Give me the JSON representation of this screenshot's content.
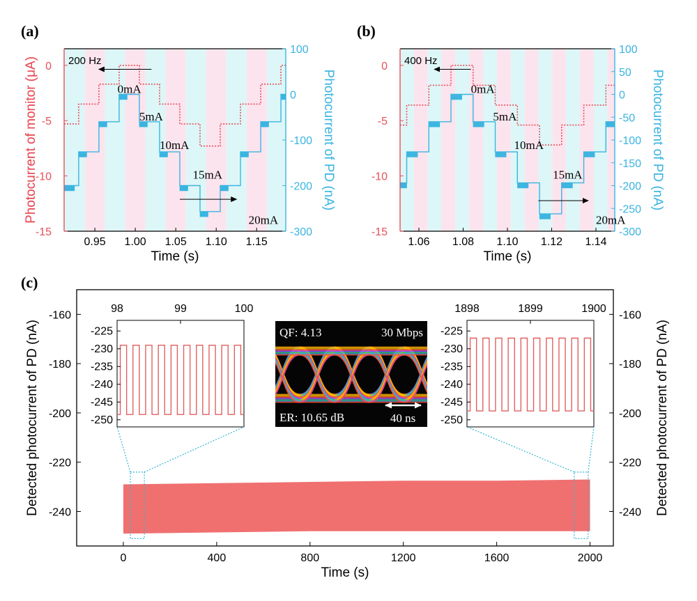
{
  "colors": {
    "monitor": "#e8505a",
    "pd": "#3ab4e0",
    "pinkband": "#fbe4ee",
    "cyanband": "#ddf6f7",
    "mainfill": "#f07070",
    "insetline": "#e06060",
    "zoombox": "#33b5d5"
  },
  "chart_data": [
    {
      "id": "a",
      "panel_label": "(a)",
      "type": "line",
      "xlabel": "Time (s)",
      "ylabel_left": "Photocurrent of monitor (μA)",
      "ylabel_right": "Photocurrent of PD (nA)",
      "xlim": [
        0.912,
        1.186
      ],
      "ylim_left": [
        -15,
        1.5
      ],
      "ylim_right": [
        -300,
        100
      ],
      "xticks": [
        "0.95",
        "1.00",
        "1.05",
        "1.10",
        "1.15"
      ],
      "xtick_values": [
        0.95,
        1.0,
        1.05,
        1.1,
        1.15
      ],
      "yticks_left": [
        "0",
        "-5",
        "-10",
        "-15"
      ],
      "ytick_left_values": [
        0,
        -5,
        -10,
        -15
      ],
      "yticks_right": [
        "100",
        "0",
        "-100",
        "-200",
        "-300"
      ],
      "ytick_right_values": [
        100,
        0,
        -100,
        -200,
        -300
      ],
      "frequency_label": "200 Hz",
      "band_period": 0.025,
      "band_start": 0.9125,
      "monitor_series": {
        "name": "Photocurrent of monitor",
        "steps": [
          {
            "x0": 0.912,
            "x1": 0.93,
            "y": -5.3
          },
          {
            "x0": 0.93,
            "x1": 0.955,
            "y": -3.5
          },
          {
            "x0": 0.955,
            "x1": 0.98,
            "y": -1.7
          },
          {
            "x0": 0.98,
            "x1": 1.005,
            "y": 0
          },
          {
            "x0": 1.005,
            "x1": 1.03,
            "y": -1.7
          },
          {
            "x0": 1.03,
            "x1": 1.055,
            "y": -3.5
          },
          {
            "x0": 1.055,
            "x1": 1.08,
            "y": -5.3
          },
          {
            "x0": 1.08,
            "x1": 1.105,
            "y": -7.3
          },
          {
            "x0": 1.105,
            "x1": 1.13,
            "y": -5.3
          },
          {
            "x0": 1.13,
            "x1": 1.155,
            "y": -3.5
          },
          {
            "x0": 1.155,
            "x1": 1.18,
            "y": -1.7
          },
          {
            "x0": 1.18,
            "x1": 1.186,
            "y": 0
          }
        ]
      },
      "pd_series": {
        "name": "Photocurrent of PD",
        "steps": [
          {
            "x0": 0.912,
            "x1": 0.925,
            "y": -200,
            "ripple": true
          },
          {
            "x0": 0.925,
            "x1": 0.93,
            "y": -200,
            "ripple": false
          },
          {
            "x0": 0.93,
            "x1": 0.94,
            "y": -126,
            "ripple": true
          },
          {
            "x0": 0.94,
            "x1": 0.955,
            "y": -126,
            "ripple": false
          },
          {
            "x0": 0.955,
            "x1": 0.965,
            "y": -60,
            "ripple": true
          },
          {
            "x0": 0.965,
            "x1": 0.98,
            "y": -60,
            "ripple": false
          },
          {
            "x0": 0.98,
            "x1": 0.99,
            "y": 0,
            "ripple": true
          },
          {
            "x0": 0.99,
            "x1": 1.005,
            "y": 0,
            "ripple": false
          },
          {
            "x0": 1.005,
            "x1": 1.015,
            "y": -60,
            "ripple": true
          },
          {
            "x0": 1.015,
            "x1": 1.03,
            "y": -60,
            "ripple": false
          },
          {
            "x0": 1.03,
            "x1": 1.04,
            "y": -126,
            "ripple": true
          },
          {
            "x0": 1.04,
            "x1": 1.055,
            "y": -126,
            "ripple": false
          },
          {
            "x0": 1.055,
            "x1": 1.065,
            "y": -200,
            "ripple": true
          },
          {
            "x0": 1.065,
            "x1": 1.08,
            "y": -200,
            "ripple": false
          },
          {
            "x0": 1.08,
            "x1": 1.09,
            "y": -257,
            "ripple": true
          },
          {
            "x0": 1.09,
            "x1": 1.105,
            "y": -257,
            "ripple": false
          },
          {
            "x0": 1.105,
            "x1": 1.115,
            "y": -200,
            "ripple": true
          },
          {
            "x0": 1.115,
            "x1": 1.13,
            "y": -200,
            "ripple": false
          },
          {
            "x0": 1.13,
            "x1": 1.14,
            "y": -126,
            "ripple": true
          },
          {
            "x0": 1.14,
            "x1": 1.155,
            "y": -126,
            "ripple": false
          },
          {
            "x0": 1.155,
            "x1": 1.165,
            "y": -60,
            "ripple": true
          },
          {
            "x0": 1.165,
            "x1": 1.18,
            "y": -60,
            "ripple": false
          },
          {
            "x0": 1.18,
            "x1": 1.186,
            "y": 0,
            "ripple": true
          }
        ]
      },
      "annotations": [
        {
          "text": "0mA",
          "x": 0.978,
          "y": 3
        },
        {
          "text": "5mA",
          "x": 1.005,
          "y": -57
        },
        {
          "text": "10mA",
          "x": 1.03,
          "y": -120
        },
        {
          "text": "15mA",
          "x": 1.071,
          "y": -185
        },
        {
          "text": "20mA",
          "x": 1.14,
          "y": -284
        }
      ],
      "arrows": [
        {
          "x0": 1.02,
          "x1": 0.955,
          "y": 55
        },
        {
          "x0": 1.055,
          "x1": 1.125,
          "y": -230
        }
      ]
    },
    {
      "id": "b",
      "panel_label": "(b)",
      "type": "line",
      "xlabel": "Time (s)",
      "ylabel_left": "Photocurrent of monitor (μA)",
      "ylabel_right": "Photocurrent of PD (nA)",
      "xlim": [
        1.0515,
        1.1485
      ],
      "ylim_left": [
        -15,
        1.5
      ],
      "ylim_right": [
        -300,
        100
      ],
      "xticks": [
        "1.06",
        "1.08",
        "1.10",
        "1.12",
        "1.14"
      ],
      "xtick_values": [
        1.06,
        1.08,
        1.1,
        1.12,
        1.14
      ],
      "yticks_left": [
        "0",
        "-5",
        "-10",
        "-15"
      ],
      "ytick_left_values": [
        0,
        -5,
        -10,
        -15
      ],
      "yticks_right": [
        "100",
        "50",
        "0",
        "-50",
        "-100",
        "-150",
        "-200",
        "-250",
        "-300"
      ],
      "ytick_right_values": [
        100,
        50,
        0,
        -50,
        -100,
        -150,
        -200,
        -250,
        -300
      ],
      "frequency_label": "400 Hz",
      "band_period": 0.00625,
      "band_start": 1.0515,
      "monitor_series": {
        "name": "Photocurrent of monitor",
        "steps": [
          {
            "x0": 1.0515,
            "x1": 1.0545,
            "y": -5.4
          },
          {
            "x0": 1.0545,
            "x1": 1.0645,
            "y": -3.6
          },
          {
            "x0": 1.0645,
            "x1": 1.0745,
            "y": -1.8
          },
          {
            "x0": 1.0745,
            "x1": 1.0845,
            "y": 0
          },
          {
            "x0": 1.0845,
            "x1": 1.0945,
            "y": -1.8
          },
          {
            "x0": 1.0945,
            "x1": 1.1045,
            "y": -3.6
          },
          {
            "x0": 1.1045,
            "x1": 1.1145,
            "y": -5.4
          },
          {
            "x0": 1.1145,
            "x1": 1.1245,
            "y": -7.2
          },
          {
            "x0": 1.1245,
            "x1": 1.1345,
            "y": -5.4
          },
          {
            "x0": 1.1345,
            "x1": 1.1445,
            "y": -3.6
          },
          {
            "x0": 1.1445,
            "x1": 1.1485,
            "y": -1.8
          }
        ]
      },
      "pd_series": {
        "name": "Photocurrent of PD",
        "steps": [
          {
            "x0": 1.0515,
            "x1": 1.0545,
            "y": -194,
            "ripple": true
          },
          {
            "x0": 1.0545,
            "x1": 1.0595,
            "y": -126,
            "ripple": true
          },
          {
            "x0": 1.0595,
            "x1": 1.0645,
            "y": -126,
            "ripple": false
          },
          {
            "x0": 1.0645,
            "x1": 1.0695,
            "y": -60,
            "ripple": true
          },
          {
            "x0": 1.0695,
            "x1": 1.0745,
            "y": -60,
            "ripple": false
          },
          {
            "x0": 1.0745,
            "x1": 1.0795,
            "y": 0,
            "ripple": true
          },
          {
            "x0": 1.0795,
            "x1": 1.0845,
            "y": 0,
            "ripple": false
          },
          {
            "x0": 1.0845,
            "x1": 1.0895,
            "y": -60,
            "ripple": true
          },
          {
            "x0": 1.0895,
            "x1": 1.0945,
            "y": -60,
            "ripple": false
          },
          {
            "x0": 1.0945,
            "x1": 1.0995,
            "y": -126,
            "ripple": true
          },
          {
            "x0": 1.0995,
            "x1": 1.1045,
            "y": -126,
            "ripple": false
          },
          {
            "x0": 1.1045,
            "x1": 1.1095,
            "y": -194,
            "ripple": true
          },
          {
            "x0": 1.1095,
            "x1": 1.1145,
            "y": -194,
            "ripple": false
          },
          {
            "x0": 1.1145,
            "x1": 1.1195,
            "y": -262,
            "ripple": true
          },
          {
            "x0": 1.1195,
            "x1": 1.1245,
            "y": -262,
            "ripple": false
          },
          {
            "x0": 1.1245,
            "x1": 1.1295,
            "y": -194,
            "ripple": true
          },
          {
            "x0": 1.1295,
            "x1": 1.1345,
            "y": -194,
            "ripple": false
          },
          {
            "x0": 1.1345,
            "x1": 1.1395,
            "y": -126,
            "ripple": true
          },
          {
            "x0": 1.1395,
            "x1": 1.1445,
            "y": -126,
            "ripple": false
          },
          {
            "x0": 1.1445,
            "x1": 1.1485,
            "y": -60,
            "ripple": true
          }
        ]
      },
      "annotations": [
        {
          "text": "0mA",
          "x": 1.0835,
          "y": 3
        },
        {
          "text": "5mA",
          "x": 1.0935,
          "y": -57
        },
        {
          "text": "10mA",
          "x": 1.103,
          "y": -120
        },
        {
          "text": "15mA",
          "x": 1.1205,
          "y": -185
        },
        {
          "text": "20mA",
          "x": 1.14,
          "y": -284
        }
      ],
      "arrows": [
        {
          "x0": 1.0835,
          "x1": 1.067,
          "y": 55
        },
        {
          "x0": 1.114,
          "x1": 1.1365,
          "y": -233
        }
      ]
    },
    {
      "id": "c",
      "panel_label": "(c)",
      "type": "area",
      "xlabel": "Time (s)",
      "ylabel_left": "Detected photocurrent of PD (nA)",
      "ylabel_right": "Detected photocurrent of PD (nA)",
      "xlim": [
        -200,
        2100
      ],
      "ylim": [
        -254,
        -150
      ],
      "xticks": [
        "0",
        "400",
        "800",
        "1200",
        "1600",
        "2000"
      ],
      "xtick_values": [
        0,
        400,
        800,
        1200,
        1600,
        2000
      ],
      "yticks": [
        "-160",
        "-180",
        "-200",
        "-220",
        "-240"
      ],
      "ytick_values": [
        -160,
        -180,
        -200,
        -220,
        -240
      ],
      "band": {
        "x": [
          0,
          400,
          800,
          1200,
          1600,
          2000
        ],
        "upper": [
          -229,
          -228.5,
          -228,
          -227.5,
          -227.5,
          -227
        ],
        "lower": [
          -249,
          -248.5,
          -248,
          -248,
          -248,
          -248
        ]
      },
      "zoom_regions": [
        {
          "x0": 30,
          "x1": 90,
          "y0": -251,
          "y1": -224
        },
        {
          "x0": 1932,
          "x1": 1992,
          "y0": -251,
          "y1": -224
        }
      ],
      "insets": [
        {
          "type": "line",
          "xlim": [
            98,
            100
          ],
          "ylim": [
            -252,
            -222
          ],
          "xticks": [
            "98",
            "99",
            "100"
          ],
          "xtick_values": [
            98,
            99,
            100
          ],
          "yticks": [
            "-225",
            "-230",
            "-235",
            "-240",
            "-245",
            "-250"
          ],
          "ytick_values": [
            -225,
            -230,
            -235,
            -240,
            -245,
            -250
          ],
          "high": -229,
          "low": -248.5,
          "period": 0.2,
          "x_start": 98.05
        },
        {
          "type": "line",
          "xlim": [
            1898,
            1900
          ],
          "ylim": [
            -252,
            -222
          ],
          "xticks": [
            "1898",
            "1899",
            "1900"
          ],
          "xtick_values": [
            1898,
            1899,
            1900
          ],
          "yticks": [
            "-225",
            "-230",
            "-235",
            "-240",
            "-245",
            "-250"
          ],
          "ytick_values": [
            -225,
            -230,
            -235,
            -240,
            -245,
            -250
          ],
          "high": -227,
          "low": -247.5,
          "period": 0.2,
          "x_start": 1898.05
        }
      ],
      "eye_diagram": {
        "qf": "QF: 4.13",
        "rate": "30 Mbps",
        "er": "ER: 10.65 dB",
        "scale": "40 ns"
      }
    }
  ]
}
